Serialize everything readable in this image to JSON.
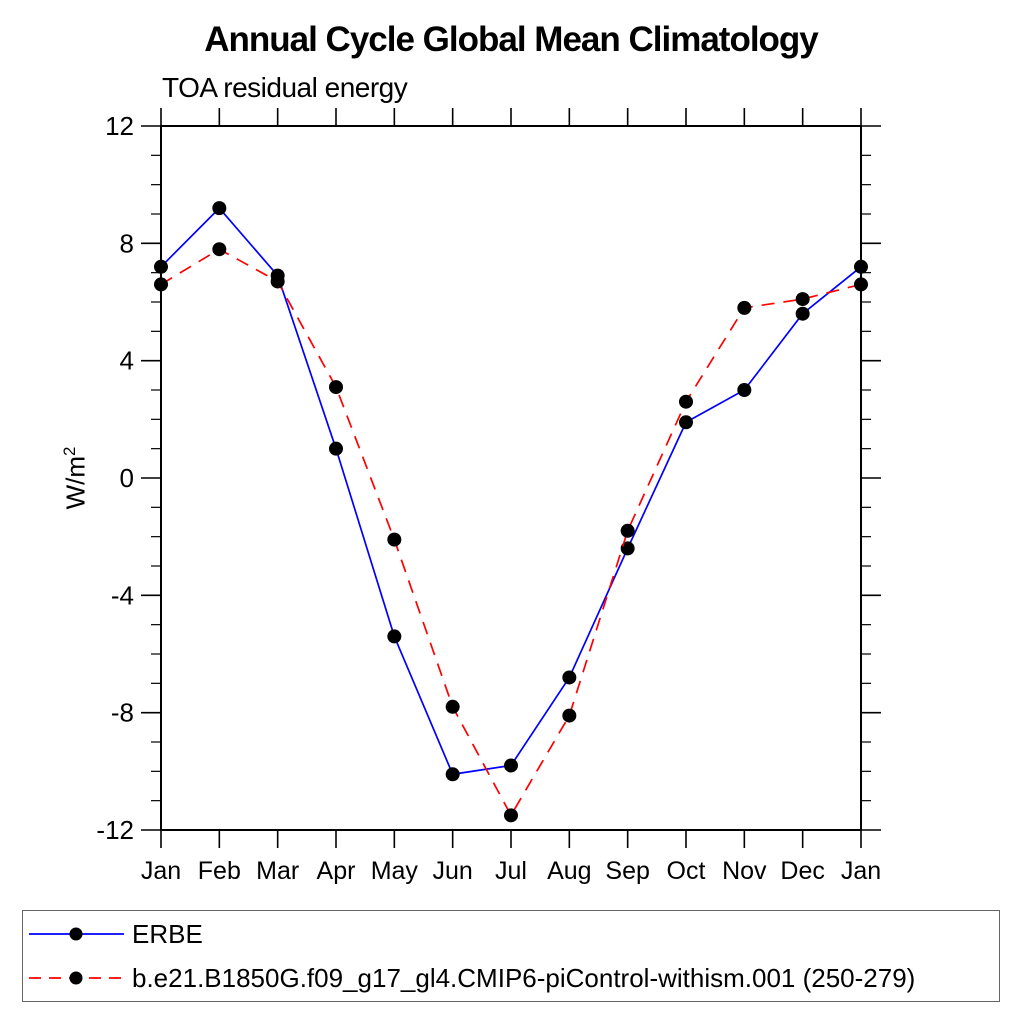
{
  "chart_data": {
    "type": "line",
    "title": "Annual Cycle Global Mean Climatology",
    "subtitle": "TOA residual energy",
    "ylabel": "W/m^2",
    "ylabel_base": "W/m",
    "ylabel_sup": "2",
    "categories": [
      "Jan",
      "Feb",
      "Mar",
      "Apr",
      "May",
      "Jun",
      "Jul",
      "Aug",
      "Sep",
      "Oct",
      "Nov",
      "Dec",
      "Jan"
    ],
    "ylim": [
      -12,
      12
    ],
    "yticks": [
      -12,
      -8,
      -4,
      0,
      4,
      8,
      12
    ],
    "ytick_minor_step": 1,
    "grid": false,
    "legend_position": "bottom",
    "marker_color": "#000000",
    "series": [
      {
        "name": "ERBE",
        "color": "#0000ff",
        "line_style": "solid",
        "marker": "filled-circle",
        "values": [
          7.2,
          9.2,
          6.9,
          1.0,
          -5.4,
          -10.1,
          -9.8,
          -6.8,
          -2.4,
          1.9,
          3.0,
          5.6,
          7.2
        ]
      },
      {
        "name": "b.e21.B1850G.f09_g17_gl4.CMIP6-piControl-withism.001 (250-279)",
        "color": "#ff0000",
        "line_style": "dashed",
        "marker": "filled-circle",
        "values": [
          6.6,
          7.8,
          6.7,
          3.1,
          -2.1,
          -7.8,
          -11.5,
          -8.1,
          -1.8,
          2.6,
          5.8,
          6.1,
          6.6
        ]
      }
    ]
  }
}
